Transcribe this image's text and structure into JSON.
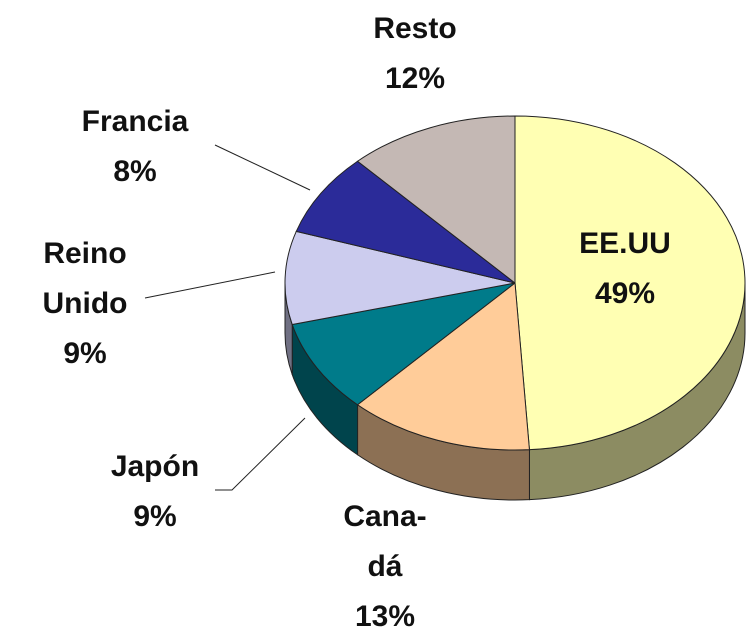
{
  "chart_data": {
    "type": "pie",
    "categories": [
      "EE.UU",
      "Cana-\ndá",
      "Japón",
      "Reino\nUnido",
      "Francia",
      "Resto"
    ],
    "values": [
      49,
      13,
      9,
      9,
      8,
      12
    ],
    "value_labels": [
      "49%",
      "13%",
      "9%",
      "9%",
      "8%",
      "12%"
    ],
    "colors": [
      "#ffffb3",
      "#ffcc99",
      "#007b8a",
      "#ccccee",
      "#2b2b99",
      "#c4b8b4"
    ]
  }
}
